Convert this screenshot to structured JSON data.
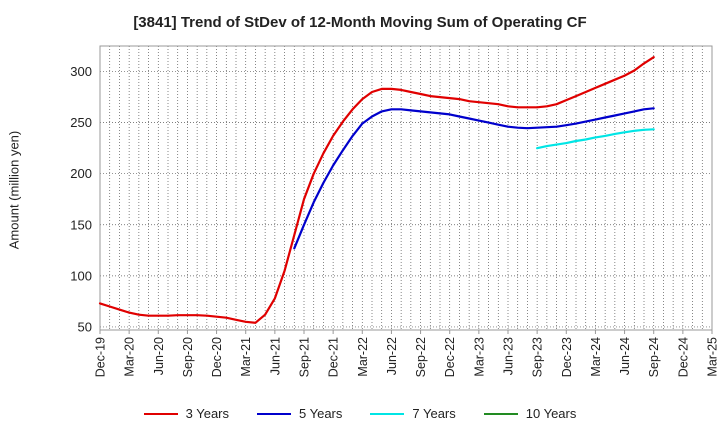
{
  "chart_data": {
    "type": "line",
    "title": "[3841]  Trend of StDev of 12-Month Moving Sum of Operating CF",
    "ylabel": "Amount (million yen)",
    "xlabel": "",
    "ylim": [
      47,
      325
    ],
    "yticks": [
      50,
      100,
      150,
      200,
      250,
      300
    ],
    "xticks": [
      "Dec-19",
      "Mar-20",
      "Jun-20",
      "Sep-20",
      "Dec-20",
      "Mar-21",
      "Jun-21",
      "Sep-21",
      "Dec-21",
      "Mar-22",
      "Jun-22",
      "Sep-22",
      "Dec-22",
      "Mar-23",
      "Jun-23",
      "Sep-23",
      "Dec-23",
      "Mar-24",
      "Jun-24",
      "Sep-24",
      "Dec-24",
      "Mar-25"
    ],
    "grid": true,
    "legend_position": "bottom",
    "series": [
      {
        "name": "3 Years",
        "color": "#e00000",
        "x": [
          "Dec-19",
          "Jan-20",
          "Feb-20",
          "Mar-20",
          "Apr-20",
          "May-20",
          "Jun-20",
          "Jul-20",
          "Aug-20",
          "Sep-20",
          "Oct-20",
          "Nov-20",
          "Dec-20",
          "Jan-21",
          "Feb-21",
          "Mar-21",
          "Apr-21",
          "May-21",
          "Jun-21",
          "Jul-21",
          "Aug-21",
          "Sep-21",
          "Oct-21",
          "Nov-21",
          "Dec-21",
          "Jan-22",
          "Feb-22",
          "Mar-22",
          "Apr-22",
          "May-22",
          "Jun-22",
          "Jul-22",
          "Aug-22",
          "Sep-22",
          "Oct-22",
          "Nov-22",
          "Dec-22",
          "Jan-23",
          "Feb-23",
          "Mar-23",
          "Apr-23",
          "May-23",
          "Jun-23",
          "Jul-23",
          "Aug-23",
          "Sep-23",
          "Oct-23",
          "Nov-23",
          "Dec-23",
          "Jan-24",
          "Feb-24",
          "Mar-24",
          "Apr-24",
          "May-24",
          "Jun-24",
          "Jul-24",
          "Aug-24",
          "Sep-24"
        ],
        "values": [
          73,
          70,
          67,
          64,
          62,
          61,
          61,
          61,
          61.5,
          61.5,
          61.5,
          61,
          60,
          59,
          57,
          55,
          54,
          62,
          78,
          105,
          140,
          175,
          200,
          220,
          237,
          251,
          263,
          273,
          280,
          283,
          283,
          282,
          280,
          278,
          276,
          275,
          274,
          273,
          271,
          270,
          269,
          268,
          266,
          265,
          265,
          265,
          266,
          268,
          272,
          276,
          280,
          284,
          288,
          292,
          296,
          301,
          308,
          314
        ]
      },
      {
        "name": "5 Years",
        "color": "#0000cc",
        "x": [
          "Aug-21",
          "Sep-21",
          "Oct-21",
          "Nov-21",
          "Dec-21",
          "Jan-22",
          "Feb-22",
          "Mar-22",
          "Apr-22",
          "May-22",
          "Jun-22",
          "Jul-22",
          "Aug-22",
          "Sep-22",
          "Oct-22",
          "Nov-22",
          "Dec-22",
          "Jan-23",
          "Feb-23",
          "Mar-23",
          "Apr-23",
          "May-23",
          "Jun-23",
          "Jul-23",
          "Aug-23",
          "Sep-23",
          "Oct-23",
          "Nov-23",
          "Dec-23",
          "Jan-24",
          "Feb-24",
          "Mar-24",
          "Apr-24",
          "May-24",
          "Jun-24",
          "Jul-24",
          "Aug-24",
          "Sep-24"
        ],
        "values": [
          127,
          150,
          172,
          191,
          208,
          223,
          237,
          249,
          256,
          261,
          263,
          263,
          262,
          261,
          260,
          259,
          258,
          256,
          254,
          252,
          250,
          248,
          246,
          245,
          244.5,
          245,
          245.5,
          246,
          247.5,
          249,
          251,
          253,
          255,
          257,
          259,
          261,
          263,
          264
        ]
      },
      {
        "name": "7 Years",
        "color": "#00e5e5",
        "x": [
          "Sep-23",
          "Oct-23",
          "Nov-23",
          "Dec-23",
          "Jan-24",
          "Feb-24",
          "Mar-24",
          "Apr-24",
          "May-24",
          "Jun-24",
          "Jul-24",
          "Aug-24",
          "Sep-24"
        ],
        "values": [
          225,
          227,
          228.5,
          230,
          232,
          233.5,
          235.5,
          237,
          239,
          240.5,
          242,
          243,
          243.5
        ]
      },
      {
        "name": "10 Years",
        "color": "#228b22",
        "x": [],
        "values": []
      }
    ]
  }
}
